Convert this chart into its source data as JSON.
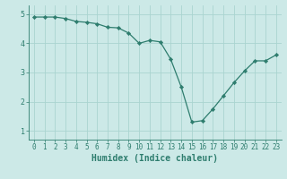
{
  "x": [
    0,
    1,
    2,
    3,
    4,
    5,
    6,
    7,
    8,
    9,
    10,
    11,
    12,
    13,
    14,
    15,
    16,
    17,
    18,
    19,
    20,
    21,
    22,
    23
  ],
  "y": [
    4.9,
    4.9,
    4.9,
    4.85,
    4.75,
    4.72,
    4.67,
    4.55,
    4.53,
    4.35,
    4.0,
    4.1,
    4.05,
    3.45,
    2.5,
    1.3,
    1.35,
    1.75,
    2.2,
    2.65,
    3.05,
    3.4,
    3.4,
    3.6
  ],
  "line_color": "#2e7d6e",
  "marker": "D",
  "marker_size": 2.2,
  "bg_color": "#cce9e7",
  "grid_color": "#aad4d0",
  "xlabel": "Humidex (Indice chaleur)",
  "xlabel_fontsize": 7,
  "tick_color": "#2e7d6e",
  "ylim": [
    0.7,
    5.3
  ],
  "xlim": [
    -0.5,
    23.5
  ],
  "yticks": [
    1,
    2,
    3,
    4,
    5
  ],
  "xticks": [
    0,
    1,
    2,
    3,
    4,
    5,
    6,
    7,
    8,
    9,
    10,
    11,
    12,
    13,
    14,
    15,
    16,
    17,
    18,
    19,
    20,
    21,
    22,
    23
  ]
}
